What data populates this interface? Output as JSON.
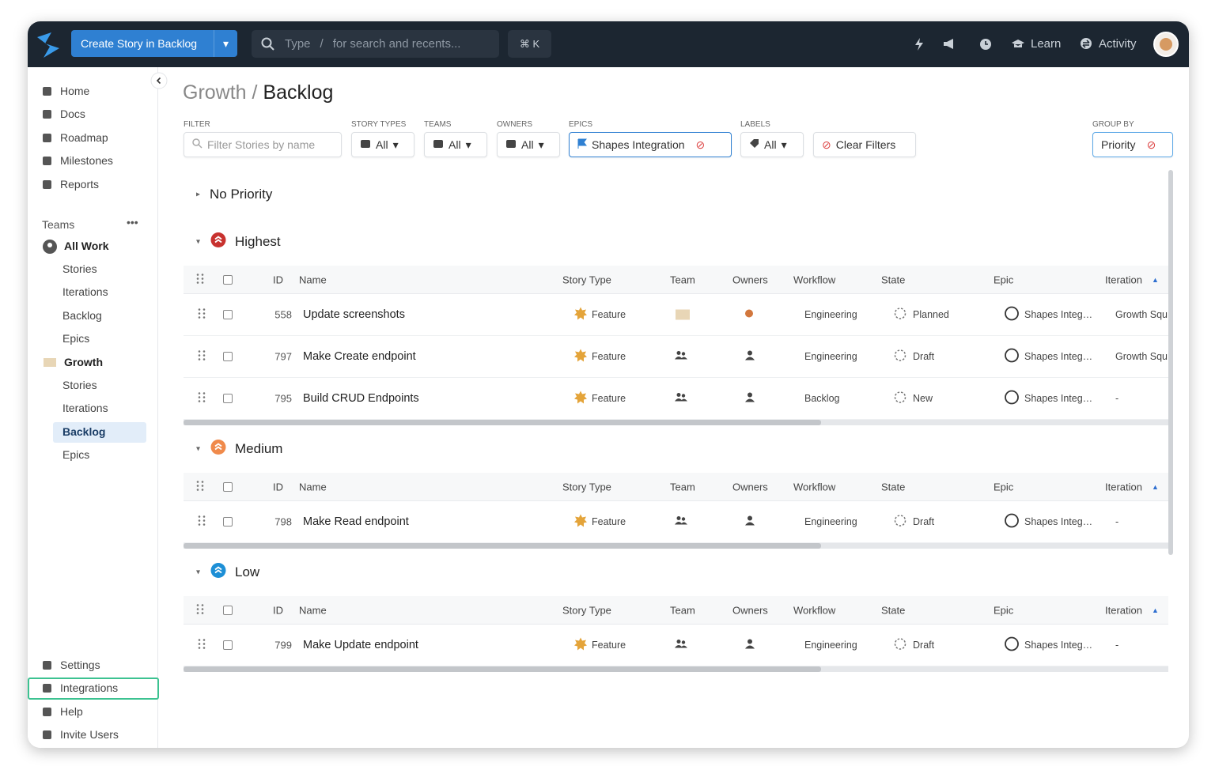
{
  "topbar": {
    "create_button": "Create Story in Backlog",
    "search_type": "Type",
    "search_slash": "/",
    "search_hint": "for search and recents...",
    "shortcut": "⌘ K",
    "learn": "Learn",
    "activity": "Activity"
  },
  "sidebar": {
    "nav": [
      "Home",
      "Docs",
      "Roadmap",
      "Milestones",
      "Reports"
    ],
    "teams_heading": "Teams",
    "teams": [
      {
        "name": "All Work",
        "items": [
          "Stories",
          "Iterations",
          "Backlog",
          "Epics"
        ]
      },
      {
        "name": "Growth",
        "items": [
          "Stories",
          "Iterations",
          "Backlog",
          "Epics"
        ]
      }
    ],
    "footer": [
      "Settings",
      "Integrations",
      "Help",
      "Invite Users"
    ]
  },
  "header": {
    "breadcrumb": "Growth /",
    "title": "Backlog"
  },
  "filters": {
    "filter_label": "FILTER",
    "filter_placeholder": "Filter Stories by name",
    "dropdowns": [
      {
        "label": "STORY TYPES",
        "value": "All"
      },
      {
        "label": "TEAMS",
        "value": "All"
      },
      {
        "label": "OWNERS",
        "value": "All"
      }
    ],
    "epics_label": "EPICS",
    "epic": "Shapes Integration",
    "labels_label": "LABELS",
    "labels_value": "All",
    "clear": "Clear Filters",
    "group_by_label": "GROUP BY",
    "group_by": "Priority"
  },
  "columns": [
    "ID",
    "Name",
    "Story Type",
    "Team",
    "Owners",
    "Workflow",
    "State",
    "Epic",
    "Iteration"
  ],
  "groups": [
    {
      "name": "No Priority",
      "rows": []
    },
    {
      "name": "Highest",
      "color": "#c8322f",
      "rows": [
        [
          "558",
          "Update screenshots",
          "Feature",
          "Engineering",
          "Planned",
          "Shapes Integ…",
          "Growth Squ"
        ],
        [
          "797",
          "Make Create endpoint",
          "Feature",
          "Engineering",
          "Draft",
          "Shapes Integ…",
          "Growth Squ"
        ],
        [
          "795",
          "Build CRUD Endpoints",
          "Feature",
          "Backlog",
          "New",
          "Shapes Integ…",
          "-"
        ]
      ]
    },
    {
      "name": "Medium",
      "color": "#f08a4b",
      "rows": [
        [
          "798",
          "Make Read endpoint",
          "Feature",
          "Engineering",
          "Draft",
          "Shapes Integ…",
          "-"
        ]
      ]
    },
    {
      "name": "Low",
      "color": "#1d8fd6",
      "rows": [
        [
          "799",
          "Make Update endpoint",
          "Feature",
          "Engineering",
          "Draft",
          "Shapes Integ…",
          "-"
        ]
      ]
    }
  ]
}
